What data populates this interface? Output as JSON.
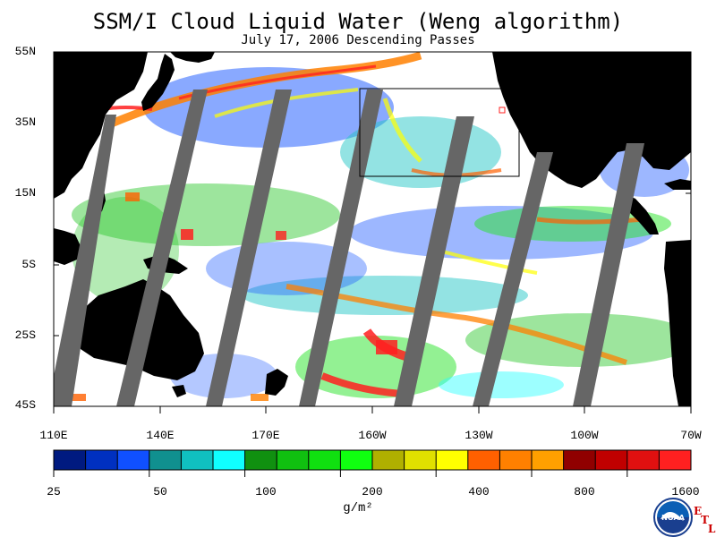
{
  "title": "SSM/I Cloud Liquid Water (Weng algorithm)",
  "subtitle": "July 17, 2006  Descending Passes",
  "lat_labels": [
    "55N",
    "35N",
    "15N",
    "5S",
    "25S",
    "45S"
  ],
  "lon_labels": [
    "110E",
    "140E",
    "170E",
    "160W",
    "130W",
    "100W",
    "70W"
  ],
  "colorbar": {
    "tick_labels": [
      "25",
      "50",
      "100",
      "200",
      "400",
      "800",
      "1600"
    ],
    "units": "g/m²",
    "colors": [
      "#001a80",
      "#0030c0",
      "#1050ff",
      "#10908f",
      "#10c0c0",
      "#10ffff",
      "#109010",
      "#10c010",
      "#10e010",
      "#10ff10",
      "#b0b000",
      "#e0e000",
      "#ffff00",
      "#ff6000",
      "#ff8000",
      "#ffa000",
      "#900000",
      "#c00000",
      "#e01010",
      "#ff2020"
    ]
  },
  "logo": {
    "name": "NOAA",
    "etl_letters": [
      "E",
      "T",
      "L"
    ]
  },
  "colors": {
    "land": "#000000",
    "no_data": "#666666",
    "background": "#ffffff"
  }
}
